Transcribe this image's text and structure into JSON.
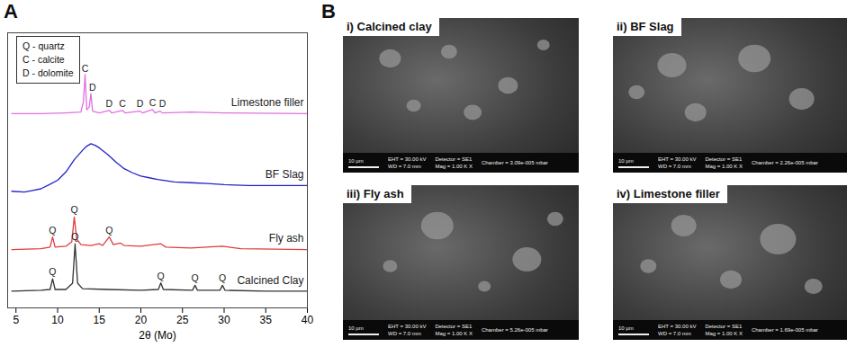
{
  "chart_data": {
    "type": "line",
    "panel_label": "A",
    "x_label": "2θ (Mo)",
    "xlim": [
      4,
      40
    ],
    "xticks": [
      5,
      10,
      15,
      20,
      25,
      30,
      35,
      40
    ],
    "ylim": [
      0,
      100
    ],
    "tick_labels": "x",
    "key": [
      "Q - quartz",
      "C - calcite",
      "D - dolomite"
    ],
    "series": [
      {
        "name": "Limestone filler",
        "color": "#e070e0",
        "x": [
          4.5,
          8,
          11,
          12.8,
          13.1,
          13.3,
          13.5,
          13.8,
          14.0,
          14.2,
          15,
          16.2,
          16.5,
          17.8,
          18.1,
          19.9,
          20.2,
          21.4,
          21.7,
          22.3,
          22.6,
          26,
          30,
          40
        ],
        "values": [
          70.6,
          70.6,
          70.9,
          71.2,
          75,
          84.8,
          72,
          73,
          77.9,
          71.5,
          70.9,
          71.8,
          70.9,
          71.8,
          70.9,
          71.5,
          70.9,
          72.1,
          70.9,
          71.5,
          70.9,
          71.2,
          70.9,
          70.6
        ],
        "peaks": [
          {
            "label": "C",
            "x": 13.3,
            "y": 87
          },
          {
            "label": "D",
            "x": 14.2,
            "y": 80
          },
          {
            "label": "D",
            "x": 16.2,
            "y": 74
          },
          {
            "label": "C",
            "x": 17.8,
            "y": 74
          },
          {
            "label": "D",
            "x": 19.9,
            "y": 74
          },
          {
            "label": "C",
            "x": 21.4,
            "y": 74.5
          },
          {
            "label": "D",
            "x": 22.6,
            "y": 74
          }
        ]
      },
      {
        "name": "BF Slag",
        "color": "#2323c8",
        "x": [
          4.5,
          6,
          7,
          8,
          9,
          10,
          11,
          12,
          13,
          13.5,
          14,
          14.5,
          15,
          16,
          17,
          18,
          19,
          20,
          21,
          22,
          24,
          26,
          28,
          30,
          33,
          36,
          40
        ],
        "values": [
          42.4,
          42.1,
          42.7,
          43.3,
          44.8,
          46.4,
          49.4,
          53.9,
          57.3,
          58.8,
          59.7,
          59.1,
          58.2,
          55.8,
          53.0,
          50.6,
          49.1,
          47.9,
          47.3,
          46.7,
          45.8,
          45.5,
          45.2,
          44.8,
          44.5,
          44.5,
          44.5
        ],
        "peaks": []
      },
      {
        "name": "Fly ash",
        "color": "#e03c3c",
        "x": [
          4.5,
          8,
          9.1,
          9.4,
          9.7,
          11,
          11.7,
          12.0,
          12.3,
          12.8,
          14,
          15,
          15.4,
          16.2,
          16.7,
          17.5,
          18,
          20,
          22.4,
          23,
          26,
          29.8,
          32,
          40
        ],
        "values": [
          21.2,
          21.5,
          22.1,
          25.8,
          22.1,
          22.4,
          24,
          33.0,
          25,
          23.0,
          22.7,
          23.3,
          22.7,
          25.8,
          23.0,
          23.6,
          22.7,
          22.4,
          23.3,
          22.1,
          21.8,
          22.4,
          21.5,
          21.2
        ],
        "peaks": [
          {
            "label": "Q",
            "x": 9.4,
            "y": 28
          },
          {
            "label": "Q",
            "x": 12.0,
            "y": 35.5
          },
          {
            "label": "Q",
            "x": 16.2,
            "y": 28
          }
        ]
      },
      {
        "name": "Calcined Clay",
        "color": "#333333",
        "x": [
          4.5,
          8,
          9.1,
          9.4,
          9.7,
          11,
          11.8,
          12.1,
          12.4,
          13,
          16,
          20,
          22.1,
          22.4,
          22.7,
          26.2,
          26.5,
          26.8,
          29.5,
          29.8,
          30.1,
          35,
          40
        ],
        "values": [
          6.1,
          6.4,
          6.7,
          10.6,
          6.7,
          6.7,
          9,
          23.3,
          9,
          7.0,
          6.7,
          6.4,
          6.7,
          9.1,
          6.7,
          6.4,
          8.2,
          6.4,
          6.4,
          8.2,
          6.4,
          6.1,
          6.1
        ],
        "peaks": [
          {
            "label": "Q",
            "x": 9.4,
            "y": 13
          },
          {
            "label": "Q",
            "x": 12.1,
            "y": 25.8
          },
          {
            "label": "Q",
            "x": 22.4,
            "y": 11.5
          },
          {
            "label": "Q",
            "x": 26.5,
            "y": 10.6
          },
          {
            "label": "Q",
            "x": 29.8,
            "y": 10.6
          }
        ]
      }
    ]
  },
  "sem_images": {
    "panel_label": "B",
    "images": [
      {
        "caption": "i) Calcined clay",
        "scale_bar": "10 µm",
        "info": [
          "EHT = 30.00 kV",
          "WD = 7.0 mm",
          "Detector = SE1",
          "Mag = 1.00 K X",
          "Chamber = 3.09e-005 mbar"
        ]
      },
      {
        "caption": "ii) BF Slag",
        "scale_bar": "10 µm",
        "info": [
          "EHT = 30.00 kV",
          "WD = 7.0 mm",
          "Detector = SE1",
          "Mag = 1.00 K X",
          "Chamber = 2.26e-005 mbar"
        ]
      },
      {
        "caption": "iii) Fly ash",
        "scale_bar": "10 µm",
        "info": [
          "EHT = 30.00 kV",
          "WD = 7.0 mm",
          "Detector = SE1",
          "Mag = 1.00 K X",
          "Chamber = 5.26e-005 mbar"
        ]
      },
      {
        "caption": "iv) Limestone filler",
        "scale_bar": "10 µm",
        "info": [
          "EHT = 30.00 kV",
          "WD = 7.0 mm",
          "Detector = SE1",
          "Mag = 1.00 K X",
          "Chamber = 1.69e-005 mbar"
        ]
      }
    ]
  }
}
